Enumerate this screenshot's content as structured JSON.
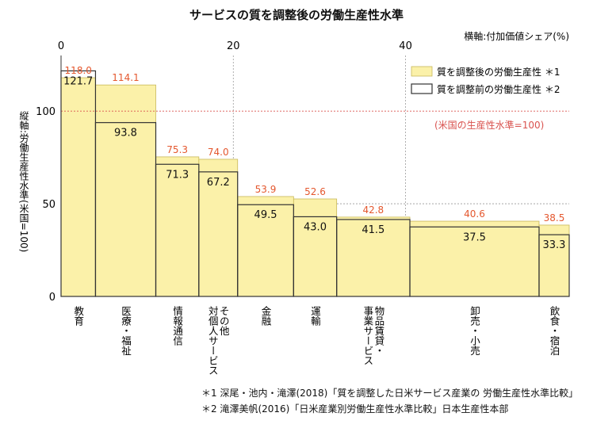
{
  "chart_data": {
    "type": "bar",
    "title": "サービスの質を調整後の労働生産性水準",
    "xlabel": "横軸:付加価値シェア(%)",
    "ylabel": "縦軸:労働生産性水準(米国=100)",
    "x_ticks": [
      "0",
      "20",
      "40"
    ],
    "y_ticks": [
      "0",
      "50",
      "100"
    ],
    "xlim": [
      0,
      59
    ],
    "ylim": [
      0,
      130
    ],
    "reference_line": {
      "value": 100,
      "label": "(米国の生産性水準=100)"
    },
    "categories": [
      "教育",
      "医療・福祉",
      "情報通信",
      "その他\n対個人サービス",
      "金融",
      "運輸",
      "物品賃貸・\n事業サービス",
      "卸売・小売",
      "飲食・宿泊"
    ],
    "x_start": [
      0,
      4,
      11,
      16,
      20.5,
      27,
      32,
      40.5,
      55.5
    ],
    "x_end": [
      4,
      11,
      16,
      20.5,
      27,
      32,
      40.5,
      55.5,
      59
    ],
    "series": [
      {
        "name": "質を調整後の労働生産性 ＊1",
        "values": [
          118.0,
          114.1,
          75.3,
          74.0,
          53.9,
          52.6,
          42.8,
          40.6,
          38.5
        ]
      },
      {
        "name": "質を調整前の労働生産性 ＊2",
        "values": [
          121.7,
          93.8,
          71.3,
          67.2,
          49.5,
          43.0,
          41.5,
          37.5,
          33.3
        ]
      }
    ],
    "labels_adjusted": [
      "118.0",
      "114.1",
      "75.3",
      "74.0",
      "53.9",
      "52.6",
      "42.8",
      "40.6",
      "38.5"
    ],
    "labels_unadjusted": [
      "121.7",
      "93.8",
      "71.3",
      "67.2",
      "49.5",
      "43.0",
      "41.5",
      "37.5",
      "33.3"
    ],
    "legend_position": "top-right",
    "colors": {
      "fill": "#fbf1a9",
      "border": "#333333",
      "label_adjusted": "#e4572e",
      "reference": "#d9534f",
      "grid": "#9a9a9a"
    }
  },
  "notes": [
    "＊1 深尾・池内・滝澤(2018)「質を調整した日米サービス産業の 労働生産性水準比較」",
    "＊2 滝澤美帆(2016)「日米産業別労働生産性水準比較」日本生産性本部"
  ]
}
